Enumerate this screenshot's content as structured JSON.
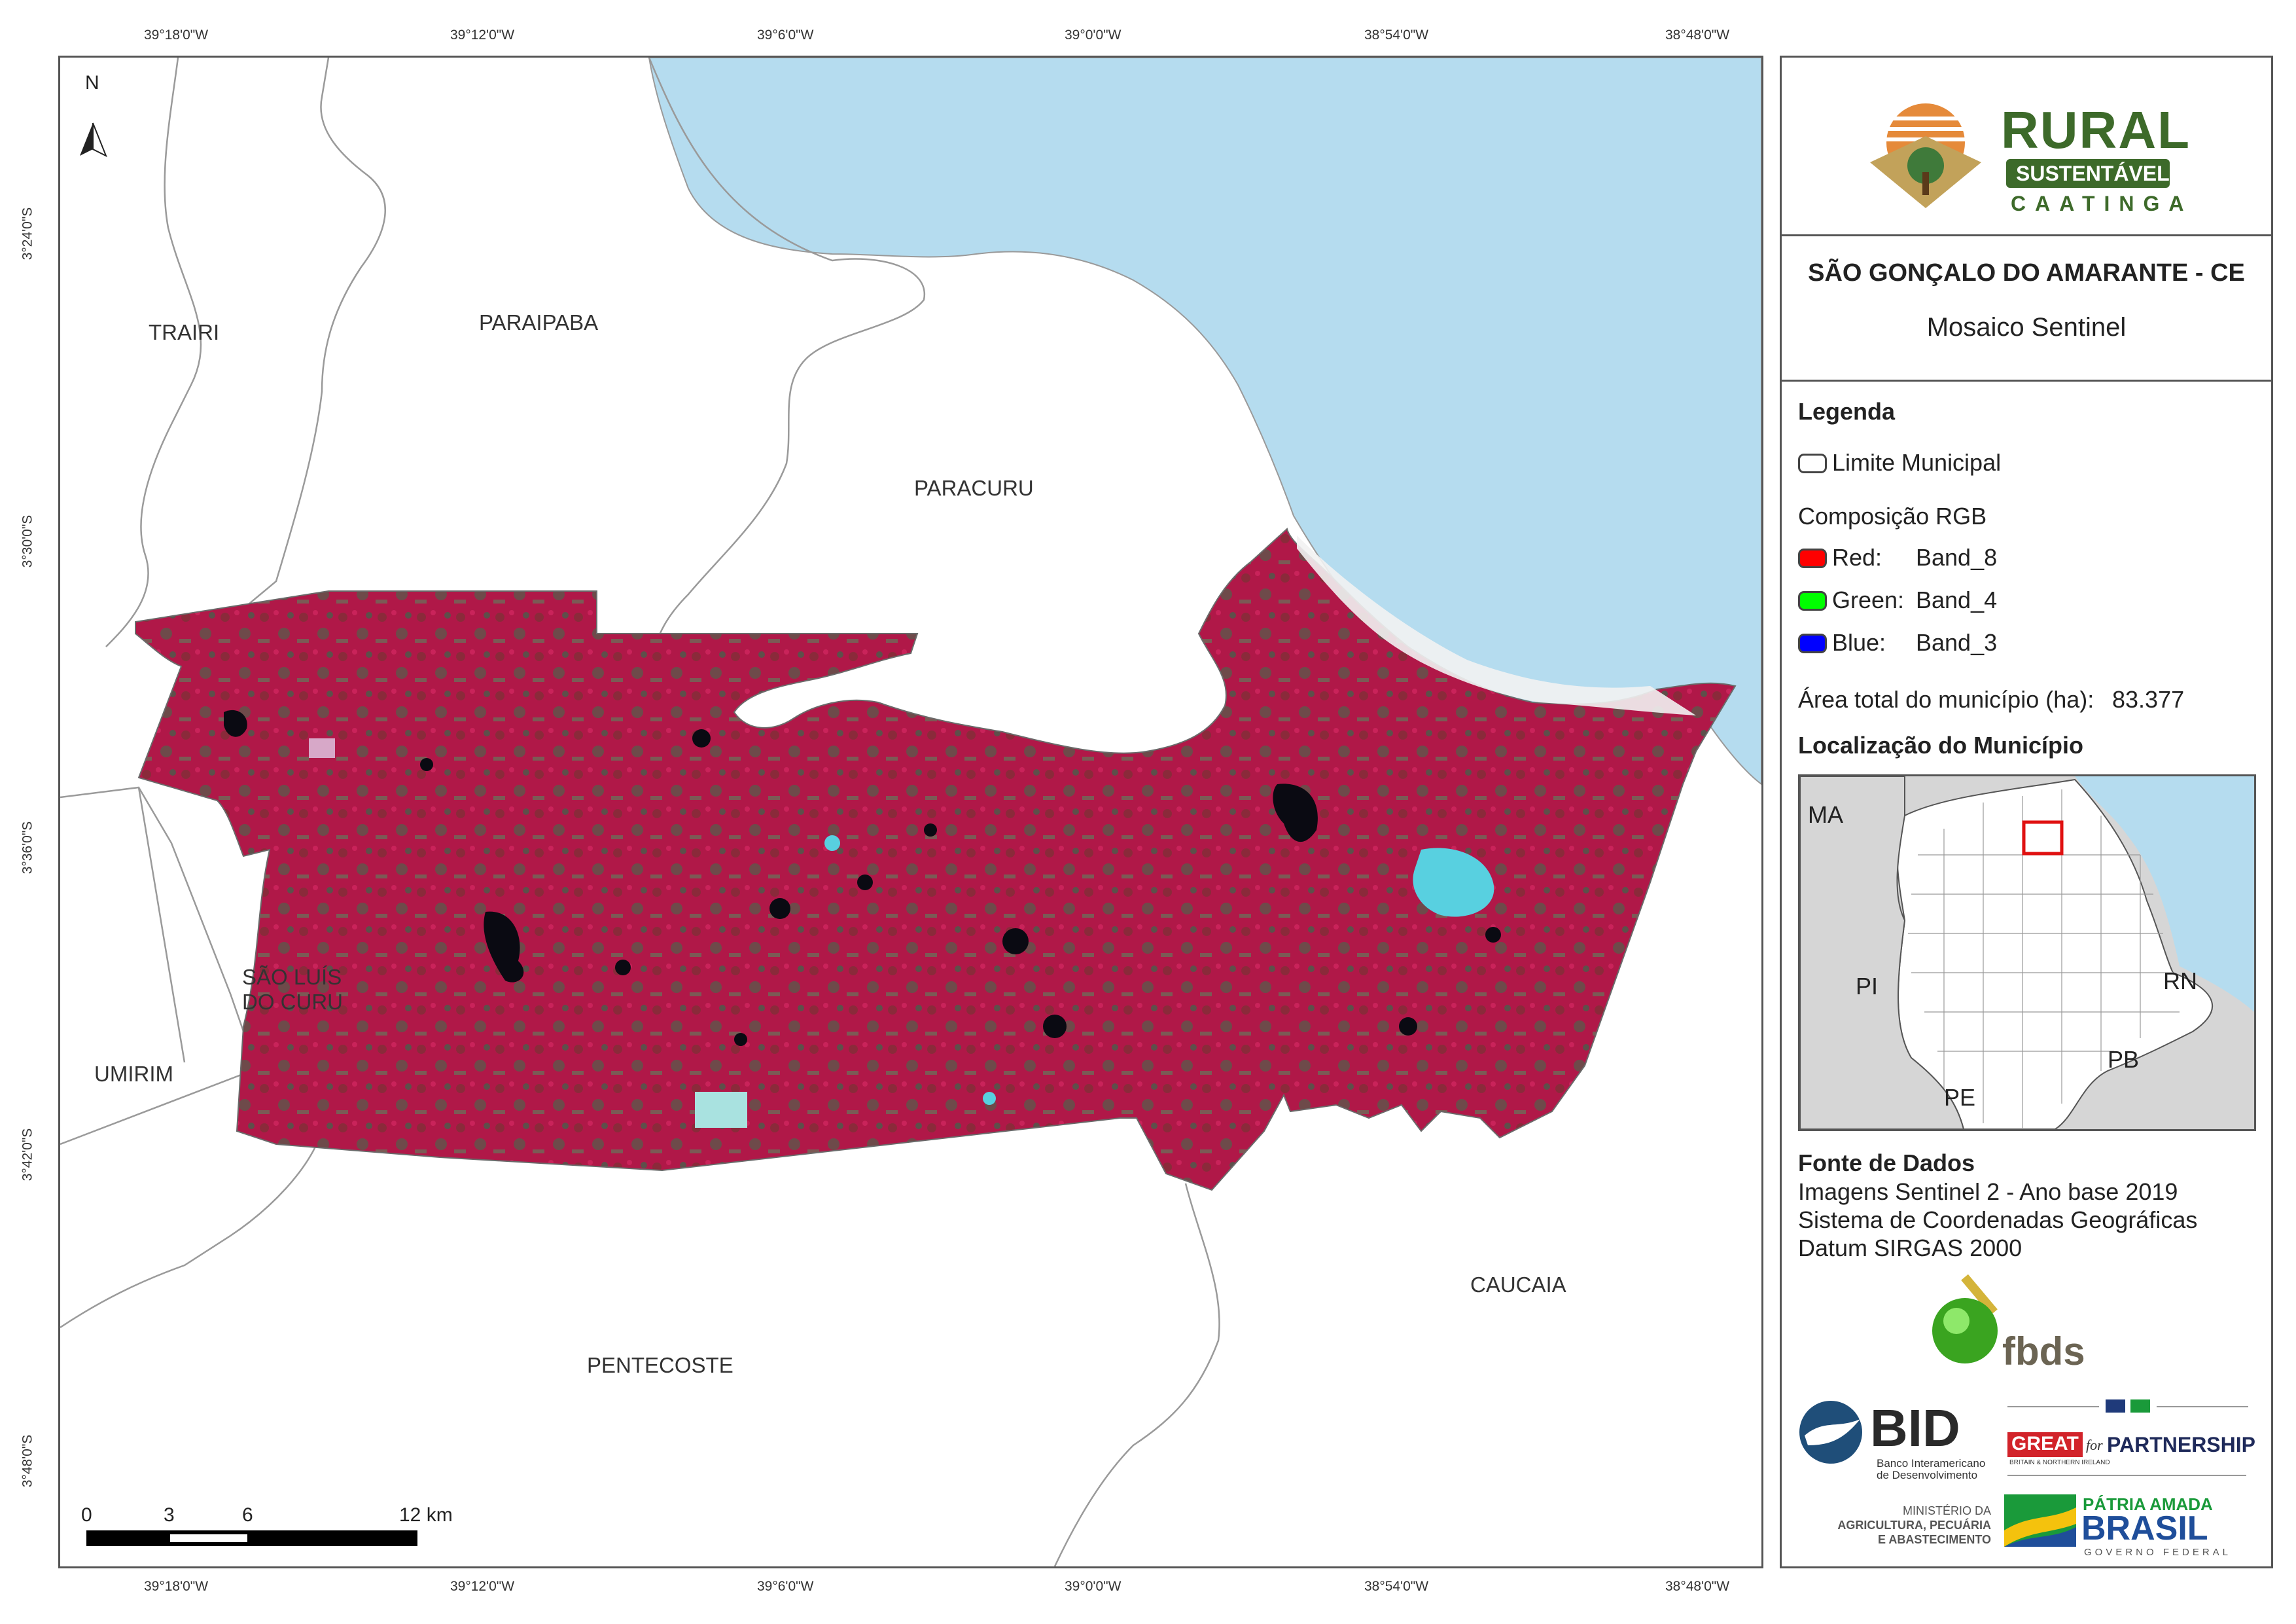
{
  "coordinates": {
    "top": [
      "39°18'0\"W",
      "39°12'0\"W",
      "39°6'0\"W",
      "39°0'0\"W",
      "38°54'0\"W",
      "38°48'0\"W"
    ],
    "bottom": [
      "39°18'0\"W",
      "39°12'0\"W",
      "39°6'0\"W",
      "39°0'0\"W",
      "38°54'0\"W",
      "38°48'0\"W"
    ],
    "left": [
      "3°24'0\"S",
      "3°30'0\"S",
      "3°36'0\"S",
      "3°42'0\"S",
      "3°48'0\"S"
    ]
  },
  "map": {
    "north_label": "N",
    "places": {
      "trairi": "TRAIRI",
      "paraipaba": "PARAIPABA",
      "paracuru": "PARACURU",
      "sao_luis_line1": "SÃO LUÍS",
      "sao_luis_line2": "DO CURU",
      "umirim": "UMIRIM",
      "pentecoste": "PENTECOSTE",
      "caucaia": "CAUCAIA"
    },
    "scale_labels": [
      "0",
      "3",
      "6",
      "12 km"
    ],
    "colors": {
      "ocean": "#b5dcef",
      "vegetation": "#b5194a",
      "land": "#ffffff"
    }
  },
  "panel": {
    "logo": {
      "word1": "RURAL",
      "word2": "SUSTENTÁVEL",
      "word3": "CAATINGA"
    },
    "title": "SÃO GONÇALO DO AMARANTE - CE",
    "subtitle": "Mosaico Sentinel",
    "legend": {
      "heading": "Legenda",
      "limit": "Limite Municipal",
      "rgb_heading": "Composição RGB",
      "red_label": "Red:",
      "red_band": "Band_8",
      "green_label": "Green:",
      "green_band": "Band_4",
      "blue_label": "Blue:",
      "blue_band": "Band_3",
      "area_text": "Área total do município (ha):",
      "area_value": "83.377"
    },
    "inset": {
      "heading": "Localização do Município",
      "labels": {
        "ma": "MA",
        "pi": "PI",
        "rn": "RN",
        "pb": "PB",
        "pe": "PE"
      }
    },
    "source": {
      "heading": "Fonte de Dados",
      "line1": "Imagens Sentinel 2 - Ano base 2019",
      "line2": "Sistema de Coordenadas Geográficas",
      "line3": "Datum SIRGAS 2000"
    },
    "logos": {
      "fbds": "fbds",
      "bid": "BID",
      "bid_sub1": "Banco Interamericano",
      "bid_sub2": "de Desenvolvimento",
      "great": "GREAT",
      "great_for": "for",
      "great_partnership": "PARTNERSHIP",
      "great_sub": "BRITAIN & NORTHERN IRELAND",
      "ministerio1": "MINISTÉRIO DA",
      "ministerio2": "AGRICULTURA, PECUÁRIA",
      "ministerio3": "E ABASTECIMENTO",
      "patria": "PÁTRIA AMADA",
      "brasil": "BRASIL",
      "governo": "GOVERNO FEDERAL"
    }
  }
}
